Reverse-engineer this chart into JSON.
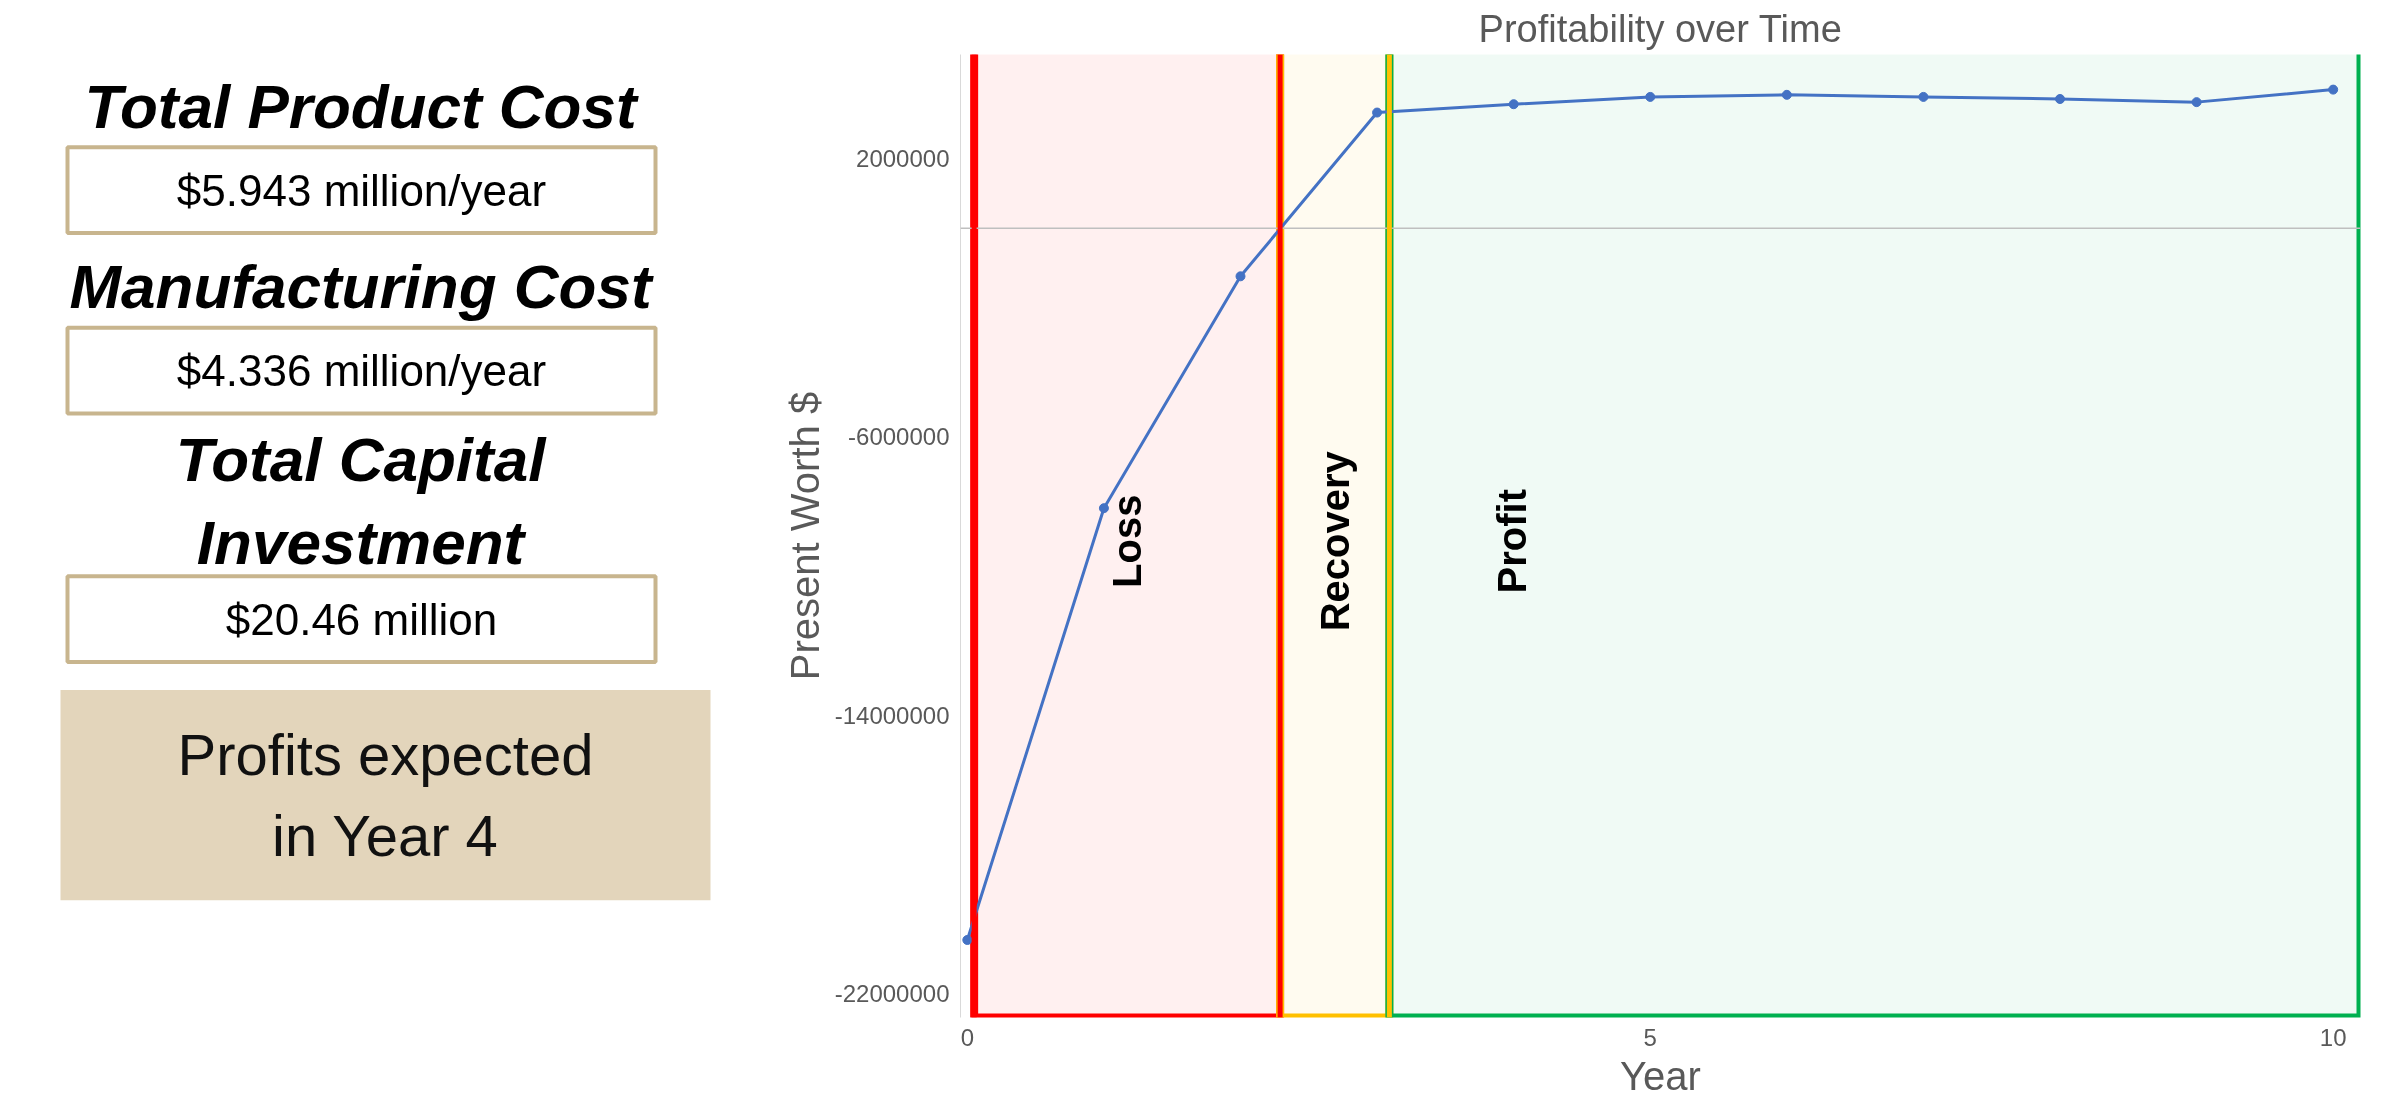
{
  "chart_data": [
    {
      "type": "other",
      "annotations": [
        "Total Product Cost",
        "$5.943 million/year",
        "Manufacturing Cost",
        "$4.336 million/year",
        "Total Capital Investment",
        "$20.46 million",
        "Profits expected in Year 4"
      ]
    },
    {
      "type": "line",
      "title": "Profitability over Time",
      "xlabel": "Year",
      "ylabel": "Present Worth $",
      "x": [
        0,
        1,
        2,
        3,
        4,
        5,
        6,
        7,
        8,
        9,
        10
      ],
      "series": [
        {
          "color": "#4472c4",
          "values": [
            -20470000,
            -8050000,
            -1380000,
            3330000,
            3570000,
            3780000,
            3840000,
            3780000,
            3720000,
            3630000,
            3990000
          ]
        }
      ],
      "xlim": [
        -0.05,
        10.2
      ],
      "xticks": [
        0,
        5,
        10
      ],
      "ylim": [
        -22700000,
        5000000
      ],
      "yticks": [
        2000000,
        -6000000,
        -14000000,
        -22000000
      ],
      "grid": false,
      "marker": "circle",
      "line_style": "solid",
      "ref_lines": [
        {
          "axis": "y",
          "value": 0,
          "color": "#bfbfbf"
        },
        {
          "axis": "x",
          "value": 0.05,
          "color": "#ff0000"
        },
        {
          "axis": "x",
          "value": 2.29,
          "color": "#ff0000"
        },
        {
          "axis": "x",
          "value": 3.09,
          "color": "#ffc000"
        }
      ],
      "bands": [
        {
          "axis": "x",
          "from": 0.05,
          "to": 2.29,
          "label": "Loss",
          "color": "#ff0000"
        },
        {
          "axis": "x",
          "from": 2.29,
          "to": 3.09,
          "label": "Recovery",
          "color": "#ffc000"
        },
        {
          "axis": "x",
          "from": 3.09,
          "to": 10.2,
          "label": "Profit",
          "color": "#00b050"
        }
      ]
    }
  ]
}
